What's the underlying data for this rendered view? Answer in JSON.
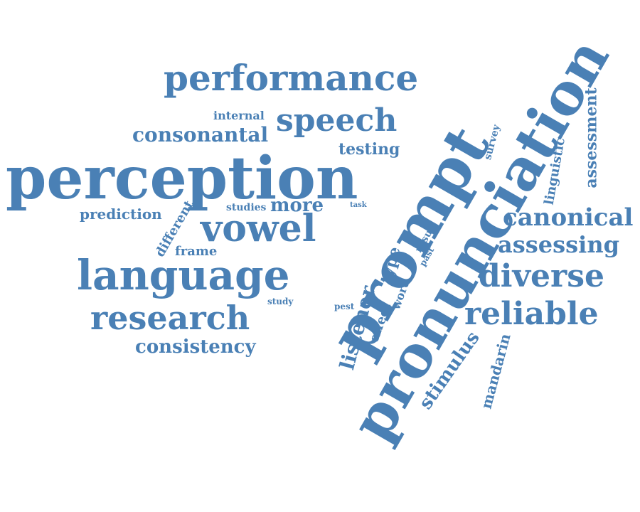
{
  "word_cloud": {
    "color": "#4a80b5",
    "words": [
      {
        "text": "pronunciation",
        "size": 80,
        "angle": -60
      },
      {
        "text": "prompt",
        "size": 86,
        "angle": -60
      },
      {
        "text": "perception",
        "size": 82,
        "angle": 0
      },
      {
        "text": "language",
        "size": 58,
        "angle": 0
      },
      {
        "text": "performance",
        "size": 50,
        "angle": 0
      },
      {
        "text": "vowel",
        "size": 52,
        "angle": 0
      },
      {
        "text": "speech",
        "size": 44,
        "angle": 0
      },
      {
        "text": "research",
        "size": 46,
        "angle": 0
      },
      {
        "text": "reliable",
        "size": 44,
        "angle": 0
      },
      {
        "text": "diverse",
        "size": 44,
        "angle": 0
      },
      {
        "text": "canonical",
        "size": 34,
        "angle": 0
      },
      {
        "text": "assessing",
        "size": 32,
        "angle": 0
      },
      {
        "text": "consonantal",
        "size": 28,
        "angle": 0
      },
      {
        "text": "consistency",
        "size": 26,
        "angle": 0
      },
      {
        "text": "more",
        "size": 26,
        "angle": 0
      },
      {
        "text": "testing",
        "size": 22,
        "angle": 0
      },
      {
        "text": "prediction",
        "size": 20,
        "angle": 0
      },
      {
        "text": "frame",
        "size": 18,
        "angle": 0
      },
      {
        "text": "internal",
        "size": 16,
        "angle": 0
      },
      {
        "text": "studies",
        "size": 14,
        "angle": 0
      },
      {
        "text": "study",
        "size": 12,
        "angle": 0
      },
      {
        "text": "pest",
        "size": 12,
        "angle": 0
      },
      {
        "text": "task",
        "size": 10,
        "angle": 0
      },
      {
        "text": "listener",
        "size": 28,
        "angle": -75
      },
      {
        "text": "type",
        "size": 22,
        "angle": -75
      },
      {
        "text": "effect",
        "size": 18,
        "angle": -70
      },
      {
        "text": "word",
        "size": 16,
        "angle": -70
      },
      {
        "text": "result",
        "size": 14,
        "angle": -60
      },
      {
        "text": "past",
        "size": 12,
        "angle": -60
      },
      {
        "text": "different",
        "size": 18,
        "angle": -60
      },
      {
        "text": "stimulus",
        "size": 26,
        "angle": -55
      },
      {
        "text": "mandarin",
        "size": 20,
        "angle": -75
      },
      {
        "text": "assessment",
        "size": 22,
        "angle": -90
      },
      {
        "text": "linguistic",
        "size": 18,
        "angle": -80
      },
      {
        "text": "survey",
        "size": 14,
        "angle": -75
      }
    ]
  }
}
